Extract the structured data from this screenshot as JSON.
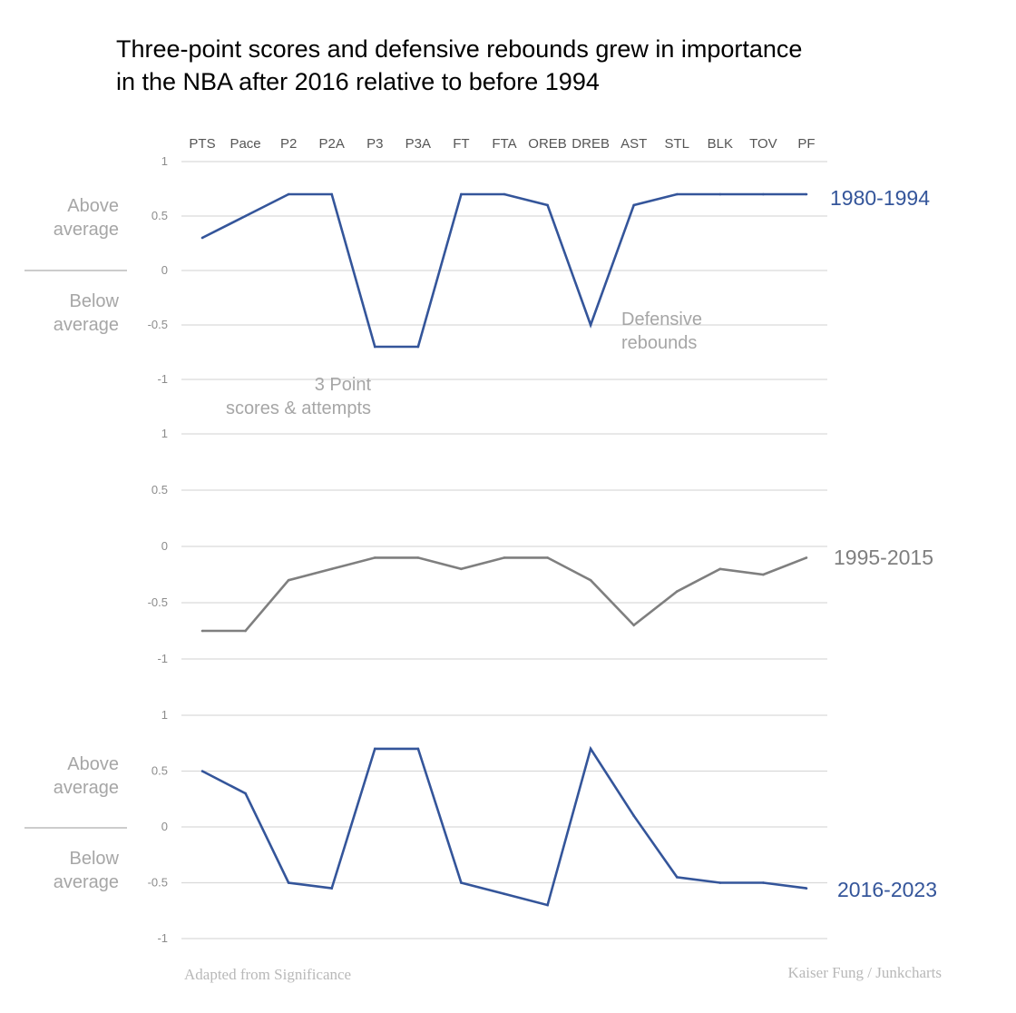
{
  "title_line1": "Three-point scores and defensive rebounds grew in importance",
  "title_line2": "in the NBA after 2016 relative to before 1994",
  "side_labels": {
    "above": [
      "Above",
      "average"
    ],
    "below": [
      "Below",
      "average"
    ]
  },
  "annotations": {
    "three_point": [
      "3 Point",
      "scores & attempts"
    ],
    "defensive": [
      "Defensive",
      "rebounds"
    ]
  },
  "footer": {
    "left": "Adapted from Significance",
    "right": "Kaiser Fung  /  Junkcharts"
  },
  "colors": {
    "blue": "#34559a",
    "gray": "#7f7f7f",
    "grid": "#d9d9d9",
    "label_gray": "#a6a6a6"
  },
  "chart_data": [
    {
      "type": "line",
      "categories": [
        "PTS",
        "Pace",
        "P2",
        "P2A",
        "P3",
        "P3A",
        "FT",
        "FTA",
        "OREB",
        "DREB",
        "AST",
        "STL",
        "BLK",
        "TOV",
        "PF"
      ],
      "series": [
        {
          "name": "1980-1994",
          "values": [
            0.3,
            0.5,
            0.7,
            0.7,
            -0.7,
            -0.7,
            0.7,
            0.7,
            0.6,
            -0.5,
            0.6,
            0.7,
            0.7,
            0.7,
            0.7
          ]
        }
      ],
      "yticks": [
        "1",
        "0.5",
        "0",
        "-0.5",
        "-1"
      ],
      "ylim": [
        -1,
        1
      ],
      "grid": true
    },
    {
      "type": "line",
      "categories": [
        "PTS",
        "Pace",
        "P2",
        "P2A",
        "P3",
        "P3A",
        "FT",
        "FTA",
        "OREB",
        "DREB",
        "AST",
        "STL",
        "BLK",
        "TOV",
        "PF"
      ],
      "series": [
        {
          "name": "1995-2015",
          "values": [
            -0.75,
            -0.75,
            -0.3,
            -0.2,
            -0.1,
            -0.1,
            -0.2,
            -0.1,
            -0.1,
            -0.3,
            -0.7,
            -0.4,
            -0.2,
            -0.25,
            -0.1
          ]
        }
      ],
      "yticks": [
        "1",
        "0.5",
        "0",
        "-0.5",
        "-1"
      ],
      "ylim": [
        -1,
        1
      ],
      "grid": true
    },
    {
      "type": "line",
      "categories": [
        "PTS",
        "Pace",
        "P2",
        "P2A",
        "P3",
        "P3A",
        "FT",
        "FTA",
        "OREB",
        "DREB",
        "AST",
        "STL",
        "BLK",
        "TOV",
        "PF"
      ],
      "series": [
        {
          "name": "2016-2023",
          "values": [
            0.5,
            0.3,
            -0.5,
            -0.55,
            0.7,
            0.7,
            -0.5,
            -0.6,
            -0.7,
            0.7,
            0.1,
            -0.45,
            -0.5,
            -0.5,
            -0.55
          ]
        }
      ],
      "yticks": [
        "1",
        "0.5",
        "0",
        "-0.5",
        "-1"
      ],
      "ylim": [
        -1,
        1
      ],
      "grid": true
    }
  ]
}
